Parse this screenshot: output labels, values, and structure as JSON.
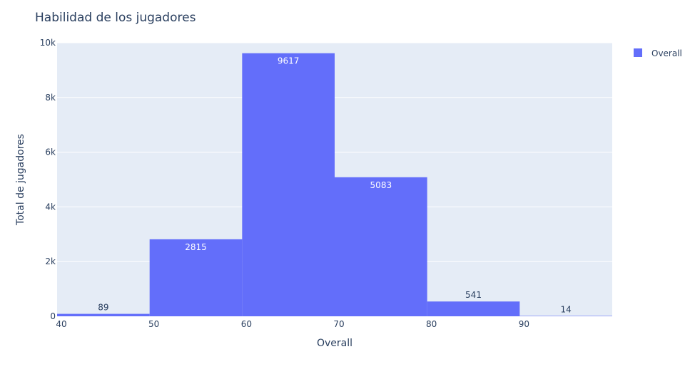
{
  "chart_data": {
    "type": "bar",
    "title": "Habilidad de los jugadores",
    "xlabel": "Overall",
    "ylabel": "Total de jugadores",
    "bins": [
      {
        "x0": 40,
        "x1": 50,
        "value": 89
      },
      {
        "x0": 50,
        "x1": 60,
        "value": 2815
      },
      {
        "x0": 60,
        "x1": 70,
        "value": 9617
      },
      {
        "x0": 70,
        "x1": 80,
        "value": 5083
      },
      {
        "x0": 80,
        "x1": 90,
        "value": 541
      },
      {
        "x0": 90,
        "x1": 100,
        "value": 14
      }
    ],
    "xlim": [
      40,
      100
    ],
    "ylim": [
      0,
      10000
    ],
    "xticks": [
      {
        "value": 40,
        "label": "40"
      },
      {
        "value": 50,
        "label": "50"
      },
      {
        "value": 60,
        "label": "60"
      },
      {
        "value": 70,
        "label": "70"
      },
      {
        "value": 80,
        "label": "80"
      },
      {
        "value": 90,
        "label": "90"
      }
    ],
    "yticks": [
      {
        "value": 0,
        "label": "0"
      },
      {
        "value": 2000,
        "label": "2k"
      },
      {
        "value": 4000,
        "label": "4k"
      },
      {
        "value": 6000,
        "label": "6k"
      },
      {
        "value": 8000,
        "label": "8k"
      },
      {
        "value": 10000,
        "label": "10k"
      }
    ],
    "series": [
      {
        "name": "Overall",
        "color": "#636efa"
      }
    ],
    "grid": true,
    "legend": "top-right"
  }
}
